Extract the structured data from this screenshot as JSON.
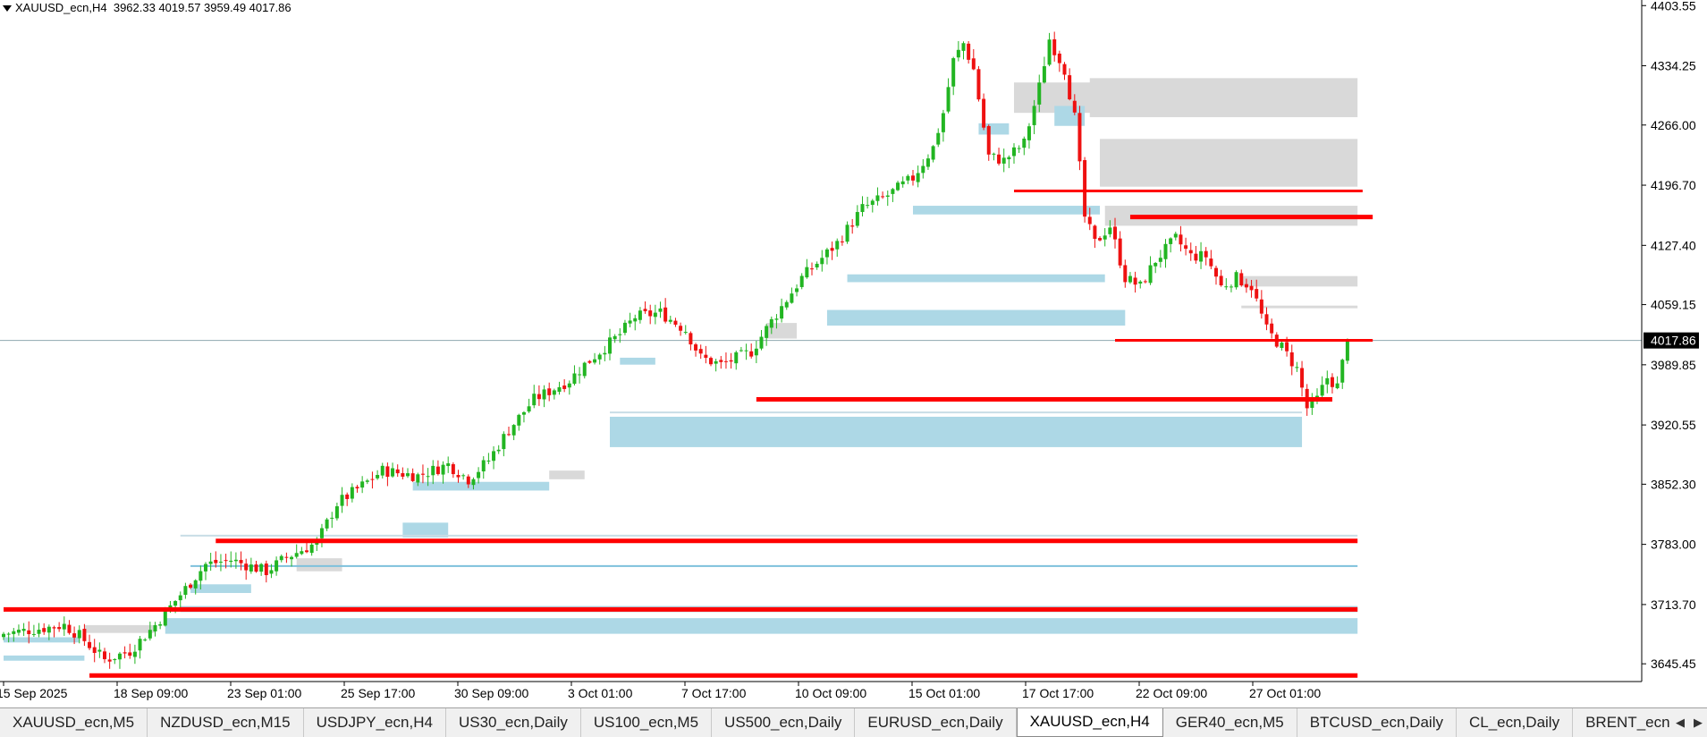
{
  "header": {
    "symbol": "XAUUSD_ecn,H4",
    "ohlc": "3962.33 4019.57 3959.49 4017.86"
  },
  "tabs": [
    {
      "label": "XAUUSD_ecn,M5",
      "active": false
    },
    {
      "label": "NZDUSD_ecn,M15",
      "active": false
    },
    {
      "label": "USDJPY_ecn,H4",
      "active": false
    },
    {
      "label": "US30_ecn,Daily",
      "active": false
    },
    {
      "label": "US100_ecn,M5",
      "active": false
    },
    {
      "label": "US500_ecn,Daily",
      "active": false
    },
    {
      "label": "EURUSD_ecn,Daily",
      "active": false
    },
    {
      "label": "XAUUSD_ecn,H4",
      "active": true
    },
    {
      "label": "GER40_ecn,M5",
      "active": false
    },
    {
      "label": "BTCUSD_ecn,Daily",
      "active": false
    },
    {
      "label": "CL_ecn,Daily",
      "active": false
    },
    {
      "label": "BRENT_ecn,",
      "active": false
    }
  ],
  "tab_scroll": {
    "left_icon": "triangle-left-icon",
    "right_icon": "triangle-right-icon",
    "left_glyph": "◀",
    "right_glyph": "▶"
  },
  "chart_data": {
    "type": "candlestick",
    "symbol": "XAUUSD_ecn",
    "timeframe": "H4",
    "y_ticks": [
      "4403.55",
      "4334.25",
      "4266.00",
      "4196.70",
      "4127.40",
      "4059.15",
      "3989.85",
      "3920.55",
      "3852.30",
      "3783.00",
      "3713.70",
      "3645.45"
    ],
    "ylim": [
      3625,
      4410
    ],
    "x_ticks": [
      "15 Sep 2025",
      "18 Sep 09:00",
      "23 Sep 01:00",
      "25 Sep 17:00",
      "30 Sep 09:00",
      "3 Oct 01:00",
      "7 Oct 17:00",
      "10 Oct 09:00",
      "15 Oct 01:00",
      "17 Oct 17:00",
      "22 Oct 09:00",
      "27 Oct 01:00"
    ],
    "current_price": "4017.86",
    "colors": {
      "bull": "#22b522",
      "bear": "#ee1111",
      "level": "#ff0000",
      "demand_zone": "#add8e6",
      "supply_zone": "#d9d9d9",
      "grid_line": "#8fa8b0",
      "axis": "#000000"
    },
    "waypoints": [
      [
        0,
        3680
      ],
      [
        12,
        3690
      ],
      [
        15,
        3678
      ],
      [
        20,
        3650
      ],
      [
        25,
        3660
      ],
      [
        30,
        3690
      ],
      [
        35,
        3725
      ],
      [
        40,
        3760
      ],
      [
        45,
        3765
      ],
      [
        52,
        3752
      ],
      [
        56,
        3768
      ],
      [
        62,
        3785
      ],
      [
        66,
        3830
      ],
      [
        72,
        3855
      ],
      [
        75,
        3868
      ],
      [
        82,
        3862
      ],
      [
        88,
        3875
      ],
      [
        92,
        3858
      ],
      [
        96,
        3880
      ],
      [
        100,
        3915
      ],
      [
        105,
        3950
      ],
      [
        112,
        3972
      ],
      [
        115,
        3990
      ],
      [
        122,
        4025
      ],
      [
        125,
        4045
      ],
      [
        130,
        4050
      ],
      [
        135,
        4030
      ],
      [
        138,
        3998
      ],
      [
        142,
        3990
      ],
      [
        148,
        4005
      ],
      [
        152,
        4040
      ],
      [
        158,
        4090
      ],
      [
        165,
        4130
      ],
      [
        170,
        4170
      ],
      [
        175,
        4185
      ],
      [
        180,
        4205
      ],
      [
        184,
        4240
      ],
      [
        186,
        4280
      ],
      [
        188,
        4340
      ],
      [
        190,
        4360
      ],
      [
        192,
        4330
      ],
      [
        195,
        4230
      ],
      [
        198,
        4225
      ],
      [
        202,
        4245
      ],
      [
        205,
        4310
      ],
      [
        207,
        4365
      ],
      [
        210,
        4330
      ],
      [
        212,
        4275
      ],
      [
        214,
        4160
      ],
      [
        216,
        4130
      ],
      [
        219,
        4150
      ],
      [
        222,
        4090
      ],
      [
        225,
        4080
      ],
      [
        228,
        4110
      ],
      [
        232,
        4135
      ],
      [
        235,
        4115
      ],
      [
        238,
        4115
      ],
      [
        241,
        4080
      ],
      [
        244,
        4090
      ],
      [
        247,
        4080
      ],
      [
        250,
        4030
      ],
      [
        253,
        4010
      ],
      [
        256,
        3985
      ],
      [
        258,
        3940
      ],
      [
        260,
        3950
      ],
      [
        262,
        3975
      ],
      [
        264,
        3965
      ],
      [
        266,
        4018
      ]
    ],
    "demand_zones": [
      {
        "t1": 0,
        "t2": 15,
        "y1": 3670,
        "y2": 3676
      },
      {
        "t1": 0,
        "t2": 16,
        "y1": 3649,
        "y2": 3655
      },
      {
        "t1": 37,
        "t2": 49,
        "y1": 3727,
        "y2": 3737
      },
      {
        "t1": 35,
        "t2": 268,
        "y1": 3705,
        "y2": 3712
      },
      {
        "t1": 32,
        "t2": 268,
        "y1": 3680,
        "y2": 3698
      },
      {
        "t1": 79,
        "t2": 88,
        "y1": 3791,
        "y2": 3808
      },
      {
        "t1": 81,
        "t2": 108,
        "y1": 3845,
        "y2": 3855
      },
      {
        "t1": 122,
        "t2": 129,
        "y1": 3990,
        "y2": 3998
      },
      {
        "t1": 120,
        "t2": 257,
        "y1": 3895,
        "y2": 3930
      },
      {
        "t1": 163,
        "t2": 222,
        "y1": 4035,
        "y2": 4053
      },
      {
        "t1": 167,
        "t2": 218,
        "y1": 4085,
        "y2": 4094
      },
      {
        "t1": 180,
        "t2": 217,
        "y1": 4163,
        "y2": 4173
      },
      {
        "t1": 193,
        "t2": 199,
        "y1": 4255,
        "y2": 4268
      },
      {
        "t1": 208,
        "t2": 214,
        "y1": 4265,
        "y2": 4288
      }
    ],
    "supply_zones": [
      {
        "t1": 16,
        "t2": 30,
        "y1": 3681,
        "y2": 3690
      },
      {
        "t1": 58,
        "t2": 67,
        "y1": 3752,
        "y2": 3767
      },
      {
        "t1": 108,
        "t2": 115,
        "y1": 3858,
        "y2": 3868
      },
      {
        "t1": 151,
        "t2": 157,
        "y1": 4020,
        "y2": 4038
      },
      {
        "t1": 200,
        "t2": 216,
        "y1": 4280,
        "y2": 4315
      },
      {
        "t1": 215,
        "t2": 268,
        "y1": 4275,
        "y2": 4320
      },
      {
        "t1": 217,
        "t2": 268,
        "y1": 4195,
        "y2": 4250
      },
      {
        "t1": 218,
        "t2": 268,
        "y1": 4150,
        "y2": 4173
      },
      {
        "t1": 245,
        "t2": 268,
        "y1": 4080,
        "y2": 4092
      },
      {
        "t1": 245,
        "t2": 268,
        "y1": 4055,
        "y2": 4058
      }
    ],
    "red_levels": [
      {
        "t1": 0,
        "t2": 268,
        "y": 3708,
        "thick": 5
      },
      {
        "t1": 17,
        "t2": 268,
        "y": 3632,
        "thick": 5
      },
      {
        "t1": 42,
        "t2": 268,
        "y": 3787,
        "thick": 5
      },
      {
        "t1": 149,
        "t2": 263,
        "y": 3950,
        "thick": 5
      },
      {
        "t1": 200,
        "t2": 269,
        "y": 4190,
        "thick": 3
      },
      {
        "t1": 223,
        "t2": 271,
        "y": 4160,
        "thick": 5
      },
      {
        "t1": 220,
        "t2": 271,
        "y": 4018,
        "thick": 3
      }
    ],
    "thin_levels": [
      {
        "t1": 37,
        "t2": 268,
        "y": 3758,
        "color": "#7ec0dc"
      },
      {
        "t1": 35,
        "t2": 268,
        "y": 3793,
        "color": "#c8dde6"
      },
      {
        "t1": 120,
        "t2": 257,
        "y": 3935,
        "color": "#c8dde6"
      }
    ]
  }
}
